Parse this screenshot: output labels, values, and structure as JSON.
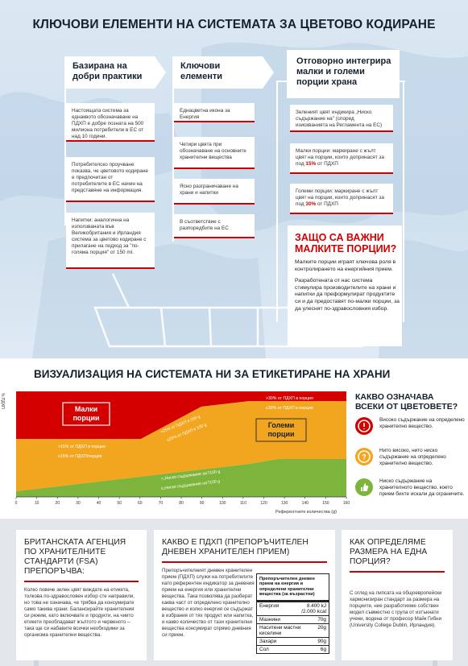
{
  "colors": {
    "red": "#d40000",
    "orange": "#f2a51f",
    "green": "#7db53c",
    "navy": "#14222e",
    "bg": "#cfe0ee"
  },
  "top": {
    "title": "КЛЮЧОВИ ЕЛЕМЕНТИ НА СИСТЕМАТА ЗА ЦВЕТОВО КОДИРАНЕ",
    "columns": [
      {
        "heading": "Базирана на добри практики",
        "cards": [
          "Настоящата система за еднаквото обозначаване на ПДХП е добре позната на 500 милиона потребители в ЕС от над 10 години.",
          "Потребителско проучване показва, че цветовото кодиране е предпочитан от потребителите в ЕС начин на представяне на информация.",
          "Напитки: аналогична на използваната във Великобритания и Ирландия система за цветово кодиране с прилагане на подход за \"по-голяма порция\" от 150 ml."
        ]
      },
      {
        "heading": "Ключови елементи",
        "cards": [
          "Еднацветна икона за Енергия",
          "Четири цвята при обозначаване на основните хранителни вещества",
          "Ясно разграничаване на храни и напитки",
          "В съответствие с разпоредбите на ЕС"
        ]
      },
      {
        "heading": "Отговорно интегрира малки и големи порции храна",
        "cards": [
          {
            "text": "Зеленият цвят индикира „Ниско съдържание на\" (според изискванията на Регламента на ЕС)"
          },
          {
            "pre": "Малки порции: маркиране с жълт цвят на порции, които допринасят за под ",
            "hl": "15%",
            "post": " от ПДХП"
          },
          {
            "pre": "Големи порции: маркиране с жълт цвят на порции, които допринасят за под ",
            "hl": "30%",
            "post": " от ПДХП"
          }
        ]
      }
    ],
    "why": {
      "title": "ЗАЩО СА ВАЖНИ МАЛКИТЕ ПОРЦИИ?",
      "p1": "Малките порции играят ключова роля в контролирането на енергийния прием.",
      "p2": "Разработената от нас система стимулира производителите на храни и напитки да преформулират продуктите си и да предоставят по-малки порции, за да улеснят по-здравословния избор."
    }
  },
  "chart": {
    "title": "ВИЗУАЛИЗАЦИЯ НА СИСТЕМАТА НИ ЗА ЕТИКЕТИРАНЕ НА ХРАНИ",
    "ylabel": "% ПДХП",
    "small_label": "Малки порции",
    "large_label": "Големи порции",
    "region_labels": {
      "gt15": ">15% от ПДХП в порция",
      "le15": "≤15% от ПДХП/порция",
      "gt25": ">25% от ПДХП в 100 g",
      "le25": "≤25% от ПДХП в 100 g",
      "gt30": ">30% от ПДХП в порция",
      "le30": "≤30% от ПДХП в порция",
      "gt_low": ">„Ниско съдържание на\"/100 g",
      "le_low": "≤„Ниско съдържание на\"/100 g"
    }
  },
  "chart_data": {
    "type": "area",
    "x": [
      0,
      10,
      20,
      30,
      40,
      50,
      60,
      70,
      80,
      90,
      100,
      110,
      120,
      130,
      140,
      150,
      160
    ],
    "xlabel": "Референтните количества (g)",
    "ylabel": "% ПДХП",
    "xlim": [
      0,
      160
    ],
    "series": [
      {
        "name": "Малки порции",
        "color": "red"
      },
      {
        "name": "Големи порции",
        "color": "orange"
      }
    ]
  },
  "legend": {
    "question": "КАКВО ОЗНАЧАВА ВСЕКИ ОТ ЦВЕТОВЕТЕ?",
    "items": [
      {
        "color": "#d40000",
        "text": "Високо съдържание на определено хранително вещество."
      },
      {
        "color": "#f2a51f",
        "text": "Нито високо, нито ниско съдържание на определено хранително вещество."
      },
      {
        "color": "#7db53c",
        "text": "Ниско съдържание на хранителното вещество, което прием бихте искали да ограничите."
      }
    ]
  },
  "bottom": {
    "card1": {
      "title": "БРИТАНСКАТА АГЕНЦИЯ ПО ХРАНИТЕЛНИТЕ СТАНДАРТИ (FSA) ПРЕПОРЪЧВА:",
      "text": "Колко повече зелен цвят виждате на етикета, толкова по-здравословен избор сте направили, но това не означава, че трябва да консумирате само такива храни. Балансирайте хранителния си режим, като включвате и продукти, на чиито етикети преобладават жълтото и червеното – така ще си набавите всички необходими за организма хранителни вещества."
    },
    "card2": {
      "title": "КАКВО Е ПДХП (ПРЕПОРЪЧИТЕЛЕН ДНЕВЕН ХРАНИТЕЛЕН ПРИЕМ)",
      "text": "Препоръчителният дневен хранителен прием (ПДХП) служи на потребителите като референтен индикатор за дневния прием на енергия или хранителни вещества. Така позволява да разберат каква част от определено хранително вещество и колко енергия се съдържат в избрания от тях продукт или напитка, и какво количество от тази хранителни вещества консумират спрямо дневния си прием.",
      "table": {
        "header": "Препоръчителен дневен прием на енергия и определени хранителни вещества (за възрастни)",
        "rows": [
          {
            "name": "Енергия",
            "value": "8.400 kJ /2.000 kcal"
          },
          {
            "name": "Мазнини",
            "value": "70g"
          },
          {
            "name": "Наситени мастни киселини",
            "value": "20g"
          },
          {
            "name": "Захари",
            "value": "90g"
          },
          {
            "name": "Сол",
            "value": "6g"
          }
        ]
      }
    },
    "card3": {
      "title": "КАК ОПРЕДЕЛЯМЕ РАЗМЕРА НА ЕДНА ПОРЦИЯ?",
      "text": "С оглед на липсата на общоевропейски хармонизиран стандарт за размера на порциите, ние разработихме собствен модел съвместно с група от изтъкнати учени, водена от професор Майк Гибни (University College Dublin, Ирландия)."
    }
  }
}
